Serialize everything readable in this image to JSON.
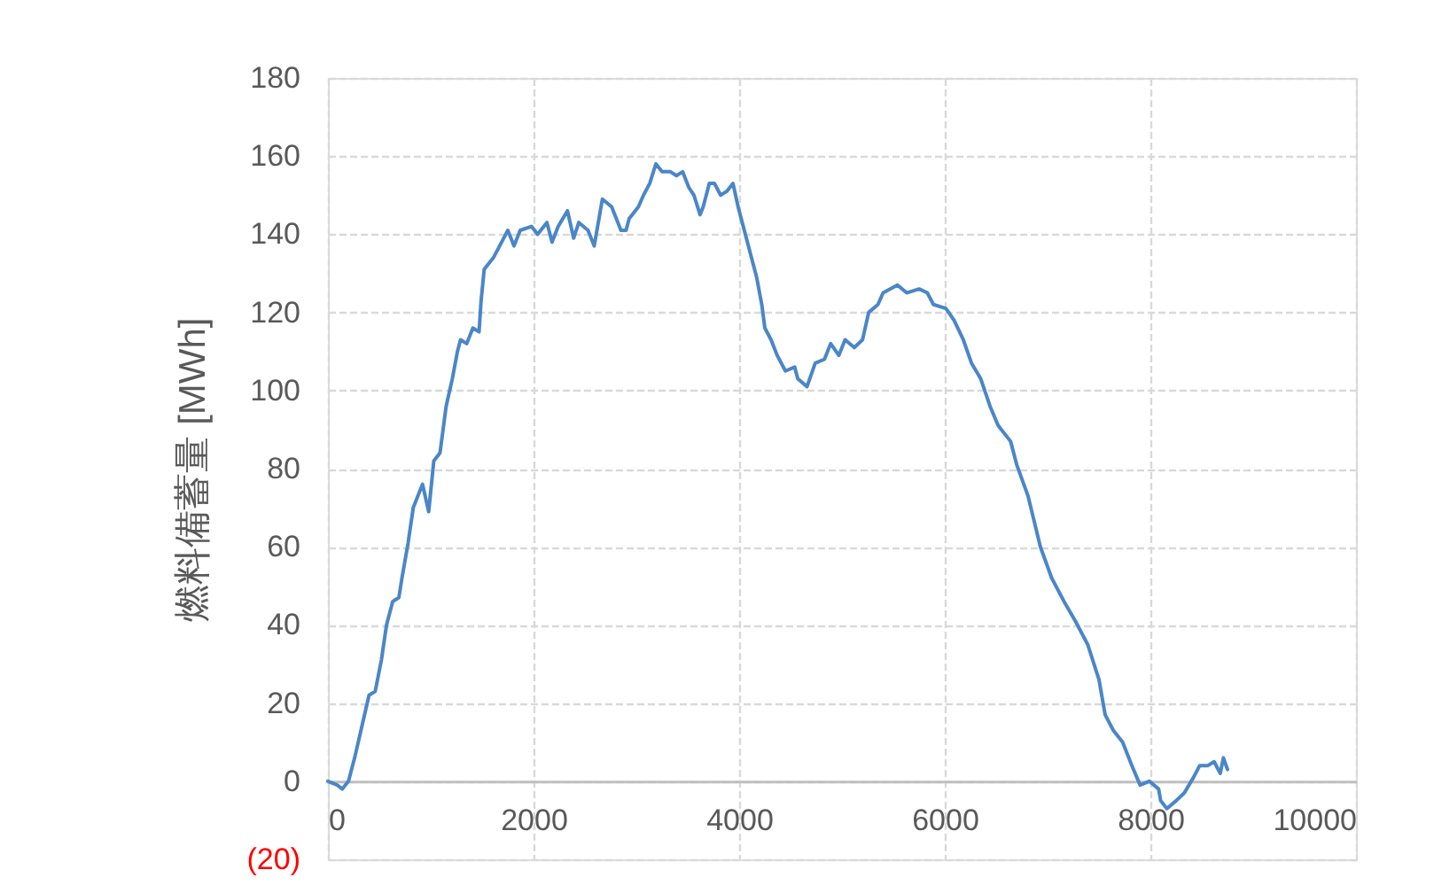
{
  "chart_data": {
    "type": "line",
    "ylabel": "燃料備蓄量 [MWh]",
    "x": [
      0,
      90,
      140,
      200,
      260,
      330,
      400,
      460,
      520,
      570,
      630,
      690,
      720,
      780,
      830,
      920,
      980,
      1030,
      1090,
      1150,
      1210,
      1260,
      1290,
      1350,
      1410,
      1470,
      1490,
      1520,
      1610,
      1670,
      1750,
      1810,
      1870,
      1980,
      2040,
      2130,
      2180,
      2240,
      2330,
      2390,
      2440,
      2530,
      2590,
      2670,
      2760,
      2850,
      2900,
      2930,
      3020,
      3070,
      3130,
      3190,
      3250,
      3330,
      3390,
      3450,
      3510,
      3560,
      3620,
      3650,
      3710,
      3760,
      3820,
      3880,
      3940,
      3990,
      4050,
      4110,
      4170,
      4220,
      4250,
      4310,
      4370,
      4450,
      4540,
      4570,
      4660,
      4740,
      4830,
      4890,
      4970,
      5030,
      5120,
      5200,
      5260,
      5350,
      5400,
      5540,
      5630,
      5750,
      5830,
      5890,
      6010,
      6090,
      6180,
      6260,
      6350,
      6440,
      6520,
      6640,
      6700,
      6810,
      6930,
      7040,
      7160,
      7270,
      7390,
      7500,
      7560,
      7640,
      7730,
      7820,
      7900,
      7990,
      8080,
      8100,
      8160,
      8250,
      8330,
      8420,
      8480,
      8560,
      8620,
      8680,
      8710,
      8750
    ],
    "series": [
      {
        "color": "#4a86c8",
        "values": [
          0,
          -1,
          -2,
          0,
          6,
          14,
          22,
          23,
          31,
          40,
          46,
          47,
          52,
          61,
          70,
          76,
          69,
          82,
          84,
          96,
          103,
          110,
          113,
          112,
          116,
          115,
          123,
          131,
          134,
          137,
          141,
          137,
          141,
          142,
          140,
          143,
          138,
          142,
          146,
          139,
          143,
          141,
          137,
          149,
          147,
          141,
          141,
          144,
          147,
          150,
          153,
          158,
          156,
          156,
          155,
          156,
          152,
          150,
          145,
          147,
          153,
          153,
          150,
          151,
          153,
          147,
          141,
          135,
          129,
          122,
          116,
          113,
          109,
          105,
          106,
          103,
          101,
          107,
          108,
          112,
          109,
          113,
          111,
          113,
          120,
          122,
          125,
          127,
          125,
          126,
          125,
          122,
          121,
          118,
          113,
          107,
          103,
          96,
          91,
          87,
          81,
          73,
          60,
          52,
          46,
          41,
          35,
          26,
          17,
          13,
          10,
          4,
          -1,
          0,
          -2,
          -5,
          -7,
          -5,
          -3,
          1,
          4,
          4,
          5,
          2,
          6,
          3
        ]
      }
    ],
    "xlim": [
      0,
      10000
    ],
    "ylim": [
      -20,
      180
    ],
    "xticks": [
      0,
      2000,
      4000,
      6000,
      8000,
      10000
    ],
    "yticks": [
      {
        "value": -20,
        "label": "(20)"
      },
      0,
      20,
      40,
      60,
      80,
      100,
      120,
      140,
      160,
      180
    ],
    "grid": true
  }
}
